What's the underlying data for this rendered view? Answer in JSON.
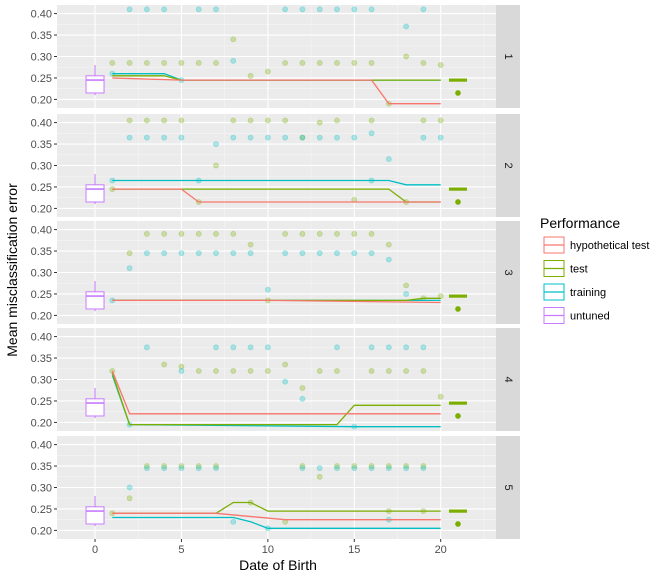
{
  "chart_data": {
    "type": "line",
    "xlabel": "Date of Birth",
    "ylabel": "Mean misclassification error",
    "xlim": [
      -2.2,
      23.2
    ],
    "ylim": [
      0.18,
      0.42
    ],
    "x_ticks": [
      0,
      5,
      10,
      15,
      20
    ],
    "x_tick_labels": [
      "0",
      "5",
      "10",
      "15",
      "20"
    ],
    "y_ticks": [
      0.2,
      0.25,
      0.3,
      0.35,
      0.4
    ],
    "y_tick_labels": [
      "0.20",
      "0.25",
      "0.30",
      "0.35",
      "0.40"
    ],
    "legend": {
      "title": "Performance",
      "position": "right",
      "entries": [
        {
          "key": "hyp",
          "label": "hypothetical test"
        },
        {
          "key": "test",
          "label": "test"
        },
        {
          "key": "train",
          "label": "training"
        },
        {
          "key": "untuned",
          "label": "untuned"
        }
      ]
    },
    "colors": {
      "hyp": "#F8766D",
      "test": "#7CAE00",
      "train": "#00BFC4",
      "untuned": "#C77CFF"
    },
    "untuned_box": {
      "x": 0,
      "q1": 0.215,
      "median": 0.245,
      "q3": 0.255,
      "whisker_low": 0.21,
      "whisker_high": 0.28
    },
    "panels": [
      {
        "strip": "1",
        "series": {
          "hyp": {
            "x": [
              1,
              5,
              16,
              17,
              20
            ],
            "y": [
              0.25,
              0.245,
              0.245,
              0.19,
              0.19
            ]
          },
          "test": {
            "x": [
              1,
              4,
              5,
              20
            ],
            "y": [
              0.255,
              0.255,
              0.245,
              0.245
            ]
          },
          "train": {
            "x": [
              1,
              4,
              5,
              20
            ],
            "y": [
              0.26,
              0.26,
              0.245,
              0.245
            ]
          }
        },
        "test_box": {
          "x": 21,
          "y": 0.245
        },
        "test_dot": {
          "x": 21,
          "y": 0.215
        },
        "points_train": [
          [
            2,
            0.41
          ],
          [
            3,
            0.41
          ],
          [
            4,
            0.41
          ],
          [
            6,
            0.41
          ],
          [
            7,
            0.41
          ],
          [
            11,
            0.41
          ],
          [
            12,
            0.41
          ],
          [
            13,
            0.41
          ],
          [
            14,
            0.41
          ],
          [
            15,
            0.41
          ],
          [
            16,
            0.41
          ],
          [
            19,
            0.41
          ],
          [
            18,
            0.37
          ],
          [
            1,
            0.26
          ],
          [
            5,
            0.245
          ],
          [
            8,
            0.29
          ]
        ],
        "points_test": [
          [
            1,
            0.285
          ],
          [
            2,
            0.285
          ],
          [
            3,
            0.285
          ],
          [
            4,
            0.285
          ],
          [
            5,
            0.285
          ],
          [
            6,
            0.285
          ],
          [
            7,
            0.285
          ],
          [
            8,
            0.34
          ],
          [
            9,
            0.255
          ],
          [
            10,
            0.265
          ],
          [
            11,
            0.285
          ],
          [
            12,
            0.285
          ],
          [
            13,
            0.285
          ],
          [
            14,
            0.285
          ],
          [
            15,
            0.285
          ],
          [
            16,
            0.285
          ],
          [
            17,
            0.19
          ],
          [
            18,
            0.3
          ],
          [
            19,
            0.285
          ],
          [
            20,
            0.28
          ]
        ]
      },
      {
        "strip": "2",
        "series": {
          "hyp": {
            "x": [
              1,
              5,
              6,
              20
            ],
            "y": [
              0.245,
              0.245,
              0.215,
              0.215
            ]
          },
          "test": {
            "x": [
              1,
              17,
              18,
              20
            ],
            "y": [
              0.245,
              0.245,
              0.215,
              0.215
            ]
          },
          "train": {
            "x": [
              1,
              17,
              18,
              20
            ],
            "y": [
              0.265,
              0.265,
              0.255,
              0.255
            ]
          }
        },
        "test_box": {
          "x": 21,
          "y": 0.245
        },
        "test_dot": {
          "x": 21,
          "y": 0.215
        },
        "points_train": [
          [
            2,
            0.365
          ],
          [
            3,
            0.365
          ],
          [
            4,
            0.365
          ],
          [
            5,
            0.365
          ],
          [
            8,
            0.365
          ],
          [
            9,
            0.365
          ],
          [
            10,
            0.365
          ],
          [
            11,
            0.365
          ],
          [
            12,
            0.365
          ],
          [
            13,
            0.365
          ],
          [
            14,
            0.365
          ],
          [
            15,
            0.365
          ],
          [
            16,
            0.375
          ],
          [
            17,
            0.315
          ],
          [
            19,
            0.365
          ],
          [
            20,
            0.365
          ],
          [
            7,
            0.35
          ],
          [
            1,
            0.265
          ],
          [
            6,
            0.265
          ],
          [
            16,
            0.265
          ]
        ],
        "points_test": [
          [
            2,
            0.405
          ],
          [
            3,
            0.405
          ],
          [
            4,
            0.405
          ],
          [
            5,
            0.405
          ],
          [
            8,
            0.405
          ],
          [
            9,
            0.405
          ],
          [
            10,
            0.405
          ],
          [
            11,
            0.405
          ],
          [
            13,
            0.4
          ],
          [
            14,
            0.405
          ],
          [
            16,
            0.405
          ],
          [
            19,
            0.405
          ],
          [
            20,
            0.405
          ],
          [
            7,
            0.3
          ],
          [
            12,
            0.365
          ],
          [
            1,
            0.245
          ],
          [
            6,
            0.215
          ],
          [
            15,
            0.22
          ],
          [
            18,
            0.215
          ]
        ]
      },
      {
        "strip": "3",
        "series": {
          "hyp": {
            "x": [
              1,
              10,
              20
            ],
            "y": [
              0.235,
              0.235,
              0.23
            ]
          },
          "test": {
            "x": [
              1,
              10,
              11,
              18,
              19,
              20
            ],
            "y": [
              0.235,
              0.235,
              0.235,
              0.235,
              0.24,
              0.24
            ]
          },
          "train": {
            "x": [
              1,
              11,
              20
            ],
            "y": [
              0.235,
              0.235,
              0.235
            ]
          }
        },
        "test_box": {
          "x": 21,
          "y": 0.245
        },
        "test_dot": {
          "x": 21,
          "y": 0.215
        },
        "points_train": [
          [
            2,
            0.31
          ],
          [
            3,
            0.345
          ],
          [
            4,
            0.345
          ],
          [
            5,
            0.345
          ],
          [
            6,
            0.345
          ],
          [
            7,
            0.345
          ],
          [
            8,
            0.345
          ],
          [
            9,
            0.345
          ],
          [
            11,
            0.345
          ],
          [
            12,
            0.345
          ],
          [
            13,
            0.345
          ],
          [
            14,
            0.345
          ],
          [
            15,
            0.345
          ],
          [
            16,
            0.345
          ],
          [
            17,
            0.33
          ],
          [
            10,
            0.26
          ],
          [
            18,
            0.25
          ],
          [
            1,
            0.235
          ]
        ],
        "points_test": [
          [
            2,
            0.345
          ],
          [
            3,
            0.39
          ],
          [
            4,
            0.39
          ],
          [
            5,
            0.39
          ],
          [
            6,
            0.39
          ],
          [
            7,
            0.39
          ],
          [
            8,
            0.39
          ],
          [
            9,
            0.365
          ],
          [
            11,
            0.39
          ],
          [
            12,
            0.39
          ],
          [
            13,
            0.39
          ],
          [
            14,
            0.39
          ],
          [
            15,
            0.39
          ],
          [
            16,
            0.39
          ],
          [
            17,
            0.365
          ],
          [
            18,
            0.27
          ],
          [
            10,
            0.235
          ],
          [
            19,
            0.24
          ],
          [
            20,
            0.245
          ]
        ]
      },
      {
        "strip": "4",
        "series": {
          "hyp": {
            "x": [
              1,
              2,
              20
            ],
            "y": [
              0.32,
              0.22,
              0.22
            ]
          },
          "test": {
            "x": [
              1,
              2,
              14,
              15,
              20
            ],
            "y": [
              0.315,
              0.195,
              0.195,
              0.24,
              0.24
            ]
          },
          "train": {
            "x": [
              1,
              2,
              15,
              20
            ],
            "y": [
              0.31,
              0.195,
              0.19,
              0.19
            ]
          }
        },
        "test_box": {
          "x": 21,
          "y": 0.245
        },
        "test_dot": {
          "x": 21,
          "y": 0.215
        },
        "points_train": [
          [
            3,
            0.375
          ],
          [
            7,
            0.375
          ],
          [
            8,
            0.375
          ],
          [
            9,
            0.375
          ],
          [
            10,
            0.375
          ],
          [
            14,
            0.375
          ],
          [
            16,
            0.375
          ],
          [
            17,
            0.375
          ],
          [
            18,
            0.375
          ],
          [
            19,
            0.375
          ],
          [
            5,
            0.32
          ],
          [
            11,
            0.295
          ],
          [
            12,
            0.255
          ],
          [
            2,
            0.195
          ],
          [
            15,
            0.19
          ]
        ],
        "points_test": [
          [
            1,
            0.32
          ],
          [
            4,
            0.335
          ],
          [
            5,
            0.33
          ],
          [
            6,
            0.32
          ],
          [
            7,
            0.32
          ],
          [
            8,
            0.32
          ],
          [
            9,
            0.32
          ],
          [
            10,
            0.32
          ],
          [
            11,
            0.335
          ],
          [
            12,
            0.28
          ],
          [
            13,
            0.32
          ],
          [
            14,
            0.32
          ],
          [
            16,
            0.32
          ],
          [
            17,
            0.32
          ],
          [
            18,
            0.32
          ],
          [
            19,
            0.32
          ],
          [
            20,
            0.26
          ]
        ]
      },
      {
        "strip": "5",
        "series": {
          "hyp": {
            "x": [
              1,
              7,
              11,
              20
            ],
            "y": [
              0.24,
              0.24,
              0.225,
              0.225
            ]
          },
          "test": {
            "x": [
              1,
              7,
              8,
              9,
              10,
              20
            ],
            "y": [
              0.24,
              0.24,
              0.265,
              0.265,
              0.245,
              0.245
            ]
          },
          "train": {
            "x": [
              1,
              8,
              9,
              10,
              20
            ],
            "y": [
              0.23,
              0.23,
              0.22,
              0.205,
              0.205
            ]
          }
        },
        "test_box": {
          "x": 21,
          "y": 0.245
        },
        "test_dot": {
          "x": 21,
          "y": 0.215
        },
        "points_train": [
          [
            2,
            0.3
          ],
          [
            3,
            0.345
          ],
          [
            4,
            0.345
          ],
          [
            5,
            0.345
          ],
          [
            6,
            0.345
          ],
          [
            7,
            0.345
          ],
          [
            12,
            0.345
          ],
          [
            13,
            0.345
          ],
          [
            14,
            0.345
          ],
          [
            15,
            0.345
          ],
          [
            16,
            0.345
          ],
          [
            17,
            0.345
          ],
          [
            18,
            0.345
          ],
          [
            19,
            0.345
          ],
          [
            8,
            0.22
          ],
          [
            17,
            0.225
          ],
          [
            10,
            0.205
          ]
        ],
        "points_test": [
          [
            2,
            0.275
          ],
          [
            3,
            0.35
          ],
          [
            4,
            0.35
          ],
          [
            5,
            0.35
          ],
          [
            6,
            0.35
          ],
          [
            7,
            0.35
          ],
          [
            12,
            0.35
          ],
          [
            13,
            0.325
          ],
          [
            14,
            0.35
          ],
          [
            15,
            0.35
          ],
          [
            16,
            0.35
          ],
          [
            17,
            0.35
          ],
          [
            18,
            0.35
          ],
          [
            19,
            0.35
          ],
          [
            1,
            0.24
          ],
          [
            9,
            0.265
          ],
          [
            11,
            0.22
          ],
          [
            17,
            0.245
          ],
          [
            19,
            0.245
          ]
        ]
      }
    ]
  }
}
